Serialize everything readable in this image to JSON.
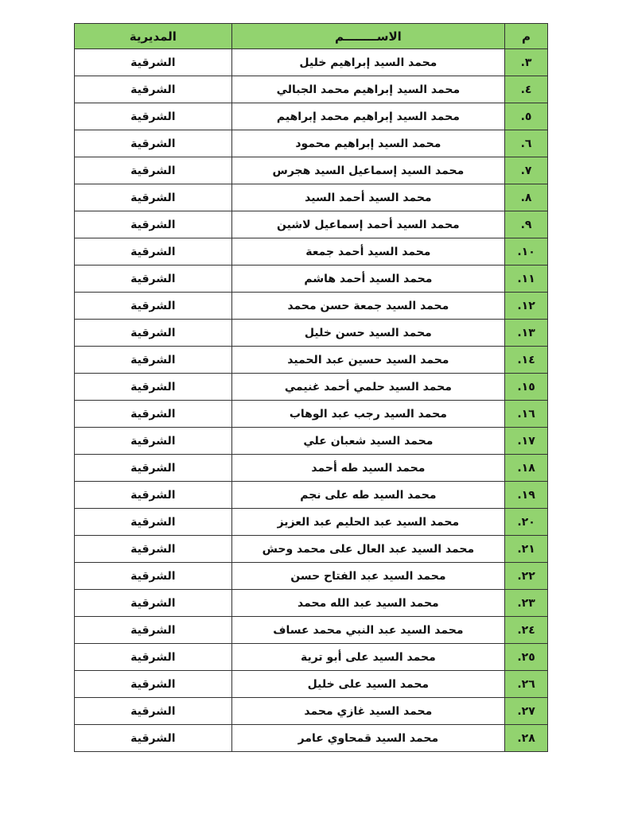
{
  "table": {
    "headers": {
      "number": "م",
      "name": "الاســــــــم",
      "directorate": "المديرية"
    },
    "rows": [
      {
        "n": "٣.",
        "name": "محمد السيد إبراهيم خليل",
        "dir": "الشرقية"
      },
      {
        "n": "٤.",
        "name": "محمد السيد إبراهيم محمد الجبالي",
        "dir": "الشرقية"
      },
      {
        "n": "٥.",
        "name": "محمد السيد إبراهيم محمد إبراهيم",
        "dir": "الشرقية"
      },
      {
        "n": "٦.",
        "name": "محمد السيد إبراهيم محمود",
        "dir": "الشرقية"
      },
      {
        "n": "٧.",
        "name": "محمد السيد إسماعيل السيد هجرس",
        "dir": "الشرقية"
      },
      {
        "n": "٨.",
        "name": "محمد السيد أحمد السيد",
        "dir": "الشرقية"
      },
      {
        "n": "٩.",
        "name": "محمد السيد أحمد إسماعيل لاشين",
        "dir": "الشرقية"
      },
      {
        "n": "١٠.",
        "name": "محمد السيد أحمد جمعة",
        "dir": "الشرقية"
      },
      {
        "n": "١١.",
        "name": "محمد السيد أحمد هاشم",
        "dir": "الشرقية"
      },
      {
        "n": "١٢.",
        "name": "محمد السيد جمعة حسن محمد",
        "dir": "الشرقية"
      },
      {
        "n": "١٣.",
        "name": "محمد السيد حسن خليل",
        "dir": "الشرقية"
      },
      {
        "n": "١٤.",
        "name": "محمد السيد حسين عبد الحميد",
        "dir": "الشرقية"
      },
      {
        "n": "١٥.",
        "name": "محمد السيد حلمي أحمد غنيمي",
        "dir": "الشرقية"
      },
      {
        "n": "١٦.",
        "name": "محمد السيد رجب عبد الوهاب",
        "dir": "الشرقية"
      },
      {
        "n": "١٧.",
        "name": "محمد السيد شعبان علي",
        "dir": "الشرقية"
      },
      {
        "n": "١٨.",
        "name": "محمد السيد طه أحمد",
        "dir": "الشرقية"
      },
      {
        "n": "١٩.",
        "name": "محمد السيد طه على نجم",
        "dir": "الشرقية"
      },
      {
        "n": "٢٠.",
        "name": "محمد السيد عبد الحليم عبد العزيز",
        "dir": "الشرقية"
      },
      {
        "n": "٢١.",
        "name": "محمد السيد عبد العال على محمد وحش",
        "dir": "الشرقية"
      },
      {
        "n": "٢٢.",
        "name": "محمد السيد عبد الفتاح حسن",
        "dir": "الشرقية"
      },
      {
        "n": "٢٣.",
        "name": "محمد السيد عبد الله محمد",
        "dir": "الشرقية"
      },
      {
        "n": "٢٤.",
        "name": "محمد السيد عبد النبي محمد عساف",
        "dir": "الشرقية"
      },
      {
        "n": "٢٥.",
        "name": "محمد السيد على أبو ترية",
        "dir": "الشرقية"
      },
      {
        "n": "٢٦.",
        "name": "محمد السيد على خليل",
        "dir": "الشرقية"
      },
      {
        "n": "٢٧.",
        "name": "محمد السيد غازي محمد",
        "dir": "الشرقية"
      },
      {
        "n": "٢٨.",
        "name": "محمد السيد قمحاوي عامر",
        "dir": "الشرقية"
      }
    ]
  },
  "colors": {
    "header_green": "#92d36f"
  }
}
